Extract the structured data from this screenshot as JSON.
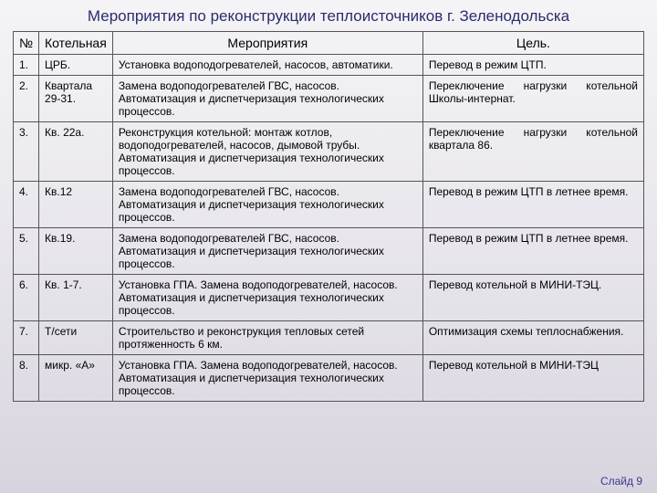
{
  "title": "Мероприятия по реконструкции теплоисточников г. Зеленодольска",
  "headers": {
    "num": "№",
    "boiler": "Котельная",
    "actions": "Мероприятия",
    "goal": "Цель."
  },
  "rows": [
    {
      "num": "1.",
      "name": "ЦРБ.",
      "actions": "Установка водоподогревателей, насосов, автоматики.",
      "goal": "Перевод в режим ЦТП."
    },
    {
      "num": "2.",
      "name": "Квартала 29-31.",
      "actions": "Замена водоподогревателей ГВС, насосов. Автоматизация и диспетчеризация технологических процессов.",
      "goal": "Переключение нагрузки котельной Школы-интернат."
    },
    {
      "num": "3.",
      "name": "Кв. 22а.",
      "actions": "Реконструкция котельной: монтаж котлов, водоподогревателей, насосов, дымовой трубы. Автоматизация и диспетчеризация технологических процессов.",
      "goal": "Переключение нагрузки котельной квартала 86."
    },
    {
      "num": "4.",
      "name": "Кв.12",
      "actions": "Замена водоподогревателей ГВС, насосов. Автоматизация и диспетчеризация технологических процессов.",
      "goal": "Перевод в режим ЦТП в летнее время."
    },
    {
      "num": "5.",
      "name": "Кв.19.",
      "actions": "Замена водоподогревателей ГВС, насосов. Автоматизация и диспетчеризация технологических процессов.",
      "goal": "Перевод в режим ЦТП в летнее время."
    },
    {
      "num": "6.",
      "name": "Кв. 1-7.",
      "actions": "Установка ГПА. Замена водоподогревателей, насосов. Автоматизация и диспетчеризация технологических процессов.",
      "goal": "Перевод котельной в МИНИ-ТЭЦ."
    },
    {
      "num": "7.",
      "name": "Т/сети",
      "actions": "Строительство и реконструкция тепловых сетей протяженность 6 км.",
      "goal": "Оптимизация схемы теплоснабжения."
    },
    {
      "num": "8.",
      "name": "микр. «А»",
      "actions": "Установка ГПА. Замена водоподогревателей, насосов. Автоматизация и диспетчеризация технологических процессов.",
      "goal": "Перевод котельной в МИНИ-ТЭЦ"
    }
  ],
  "footer": "Слайд 9"
}
